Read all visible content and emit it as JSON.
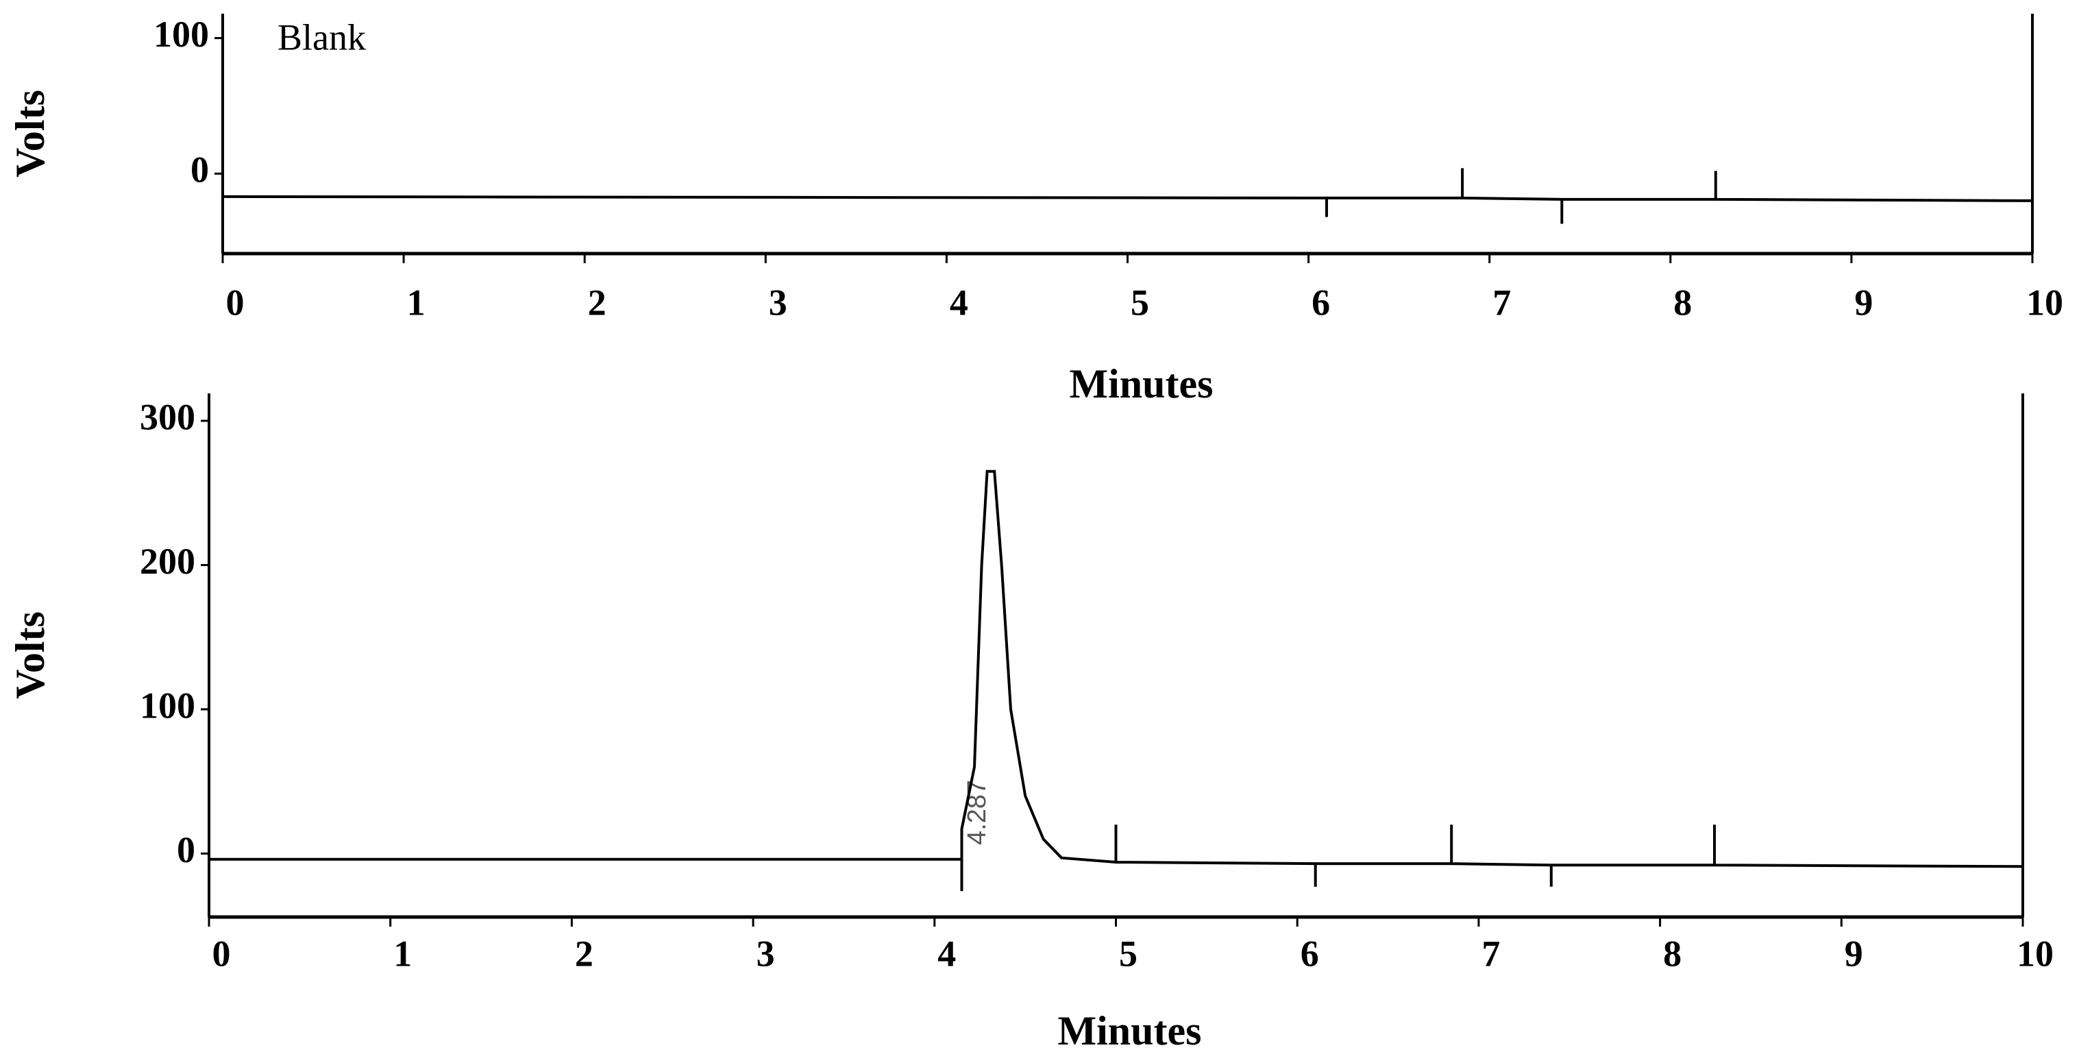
{
  "chart_data": [
    {
      "type": "line",
      "label": "Blank",
      "xlabel": "Minutes",
      "ylabel": "Volts",
      "color": "#000000",
      "xlim": [
        0,
        10
      ],
      "xticks": [
        0,
        1,
        2,
        3,
        4,
        5,
        6,
        7,
        8,
        9,
        10
      ],
      "ylim": [
        -59,
        118
      ],
      "yticks": [
        0,
        100
      ],
      "grid": false,
      "x": [
        0,
        6.1,
        6.1,
        6.1,
        6.85,
        6.85,
        6.85,
        7.4,
        7.4,
        7.4,
        8.25,
        8.25,
        8.25,
        10
      ],
      "values": [
        -17,
        -18,
        -32,
        -18,
        -18,
        4,
        -18,
        -19,
        -37,
        -19,
        -19,
        2,
        -19,
        -20
      ]
    },
    {
      "type": "line",
      "xlabel": "Minutes",
      "ylabel": "Volts",
      "color": "#000000",
      "xlim": [
        0,
        10
      ],
      "xticks": [
        0,
        1,
        2,
        3,
        4,
        5,
        6,
        7,
        8,
        9,
        10
      ],
      "ylim": [
        -44,
        319
      ],
      "yticks": [
        0,
        100,
        200,
        300
      ],
      "grid": false,
      "annotations": [
        {
          "text": "4.287"
        }
      ],
      "x": [
        0,
        4.15,
        4.15,
        4.15,
        4.22,
        4.26,
        4.29,
        4.33,
        4.37,
        4.42,
        4.5,
        4.6,
        4.7,
        5,
        5,
        5,
        6.1,
        6.1,
        6.1,
        6.85,
        6.85,
        6.85,
        7.4,
        7.4,
        7.4,
        8.3,
        8.3,
        8.3,
        10
      ],
      "values": [
        -4,
        -4,
        -26,
        17,
        60,
        200,
        265,
        265,
        200,
        100,
        40,
        10,
        -3,
        -6,
        20,
        -6,
        -7,
        -23,
        -7,
        -7,
        20,
        -7,
        -8,
        -23,
        -8,
        -8,
        20,
        -8,
        -9
      ]
    }
  ]
}
